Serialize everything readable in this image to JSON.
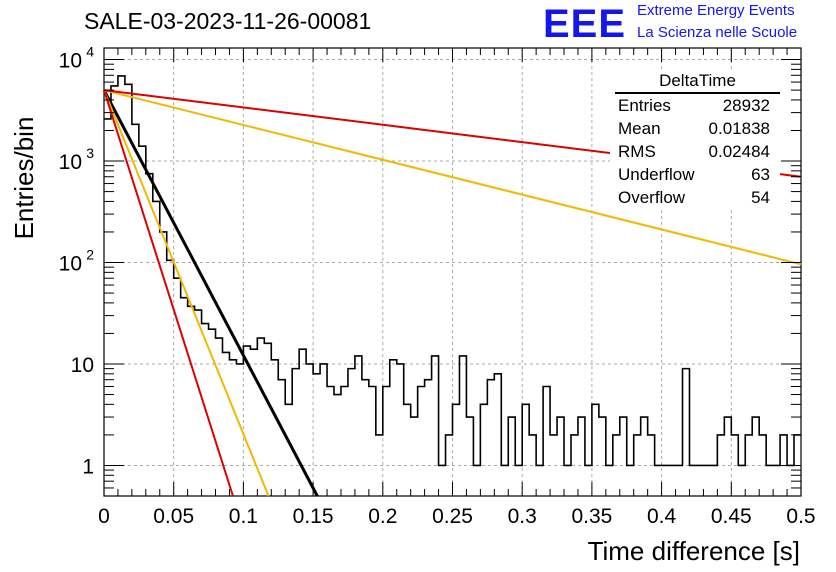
{
  "title": "SALE-03-2023-11-26-00081",
  "logo": {
    "text": "EEE",
    "line1": "Extreme Energy Events",
    "line2": "La Scienza nelle Scuole",
    "color": "#1515ee"
  },
  "stats_box": {
    "title": "DeltaTime",
    "rows": [
      {
        "label": "Entries",
        "value": "28932"
      },
      {
        "label": "Mean",
        "value": "0.01838"
      },
      {
        "label": "RMS",
        "value": "0.02484"
      },
      {
        "label": "Underflow",
        "value": "63"
      },
      {
        "label": "Overflow",
        "value": "54"
      }
    ]
  },
  "chart_data": {
    "type": "histogram",
    "title": "SALE-03-2023-11-26-00081",
    "xlabel": "Time difference [s]",
    "ylabel": "Entries/bin",
    "xlim": [
      0,
      0.5
    ],
    "ylim": [
      0.5,
      13000
    ],
    "yscale": "log",
    "grid": true,
    "xticks": [
      "0",
      "0.05",
      "0.1",
      "0.15",
      "0.2",
      "0.25",
      "0.3",
      "0.35",
      "0.4",
      "0.45",
      "0.5"
    ],
    "yticks": [
      {
        "value": 1,
        "label": "1"
      },
      {
        "value": 10,
        "label": "10"
      },
      {
        "value": 100,
        "label": "10^2"
      },
      {
        "value": 1000,
        "label": "10^3"
      },
      {
        "value": 10000,
        "label": "10^4"
      }
    ],
    "bin_width": 0.005,
    "counts": [
      2600,
      5500,
      6900,
      5700,
      2300,
      1400,
      750,
      400,
      200,
      105,
      70,
      45,
      37,
      34,
      25,
      22,
      18,
      13,
      11,
      10,
      15,
      14,
      18,
      16,
      11,
      7,
      4,
      9,
      14,
      10,
      8,
      10,
      6,
      5,
      6,
      9,
      12,
      7,
      6,
      2,
      6,
      11,
      10,
      4,
      3,
      6,
      7,
      12,
      1,
      2,
      4,
      12,
      3,
      1,
      4,
      7,
      8,
      1,
      3,
      1,
      4,
      2,
      1,
      6,
      2,
      3,
      1,
      2,
      3,
      1,
      4,
      3,
      1,
      2,
      3,
      1,
      2,
      3,
      2,
      1,
      1,
      1,
      1,
      9,
      1,
      1,
      1,
      1,
      2,
      3,
      2,
      1,
      2,
      3,
      2,
      1,
      1,
      2,
      1,
      2
    ],
    "fits": [
      {
        "color": "#000000",
        "type": "exponential",
        "x": [
          0,
          0.153
        ],
        "y": [
          5000,
          0.5
        ]
      },
      {
        "color": "#f2b800",
        "type": "exponential",
        "x": [
          0,
          0.118
        ],
        "y": [
          5000,
          0.5
        ]
      },
      {
        "color": "#dd0000",
        "type": "exponential",
        "x": [
          0,
          0.0925
        ],
        "y": [
          5000,
          0.5
        ]
      },
      {
        "color": "#f2b800",
        "type": "exponential",
        "x": [
          0,
          0.5
        ],
        "y": [
          5000,
          96
        ]
      },
      {
        "color": "#dd0000",
        "type": "exponential",
        "x": [
          0,
          0.5
        ],
        "y": [
          5000,
          700
        ]
      }
    ]
  }
}
